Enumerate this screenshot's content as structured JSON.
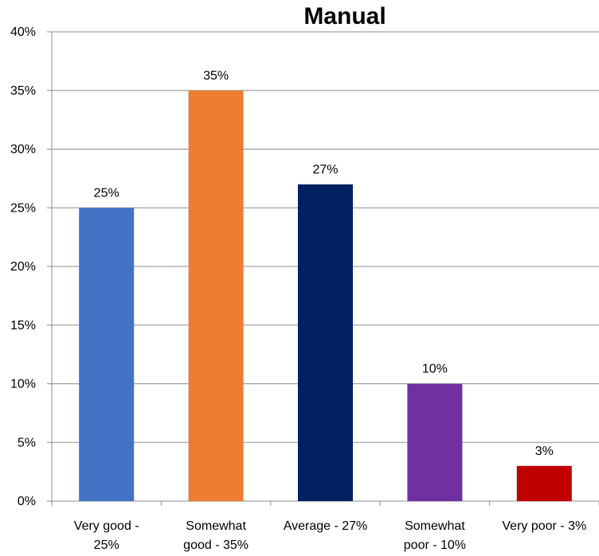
{
  "chart_data": {
    "type": "bar",
    "title": "Manual",
    "xlabel": "",
    "ylabel": "",
    "ylim": [
      0,
      40
    ],
    "y_ticks": [
      "0%",
      "5%",
      "10%",
      "15%",
      "20%",
      "25%",
      "30%",
      "35%",
      "40%"
    ],
    "grid": true,
    "legend": "none",
    "categories": [
      [
        "Very good -",
        "25%"
      ],
      [
        "Somewhat",
        "good - 35%"
      ],
      [
        "Average - 27%"
      ],
      [
        "Somewhat",
        "poor - 10%"
      ],
      [
        "Very poor - 3%"
      ]
    ],
    "values": [
      25,
      35,
      27,
      10,
      3
    ],
    "data_labels": [
      "25%",
      "35%",
      "27%",
      "10%",
      "3%"
    ],
    "colors": [
      "#4472C4",
      "#ED7D31",
      "#002060",
      "#7030A0",
      "#C00000"
    ]
  }
}
